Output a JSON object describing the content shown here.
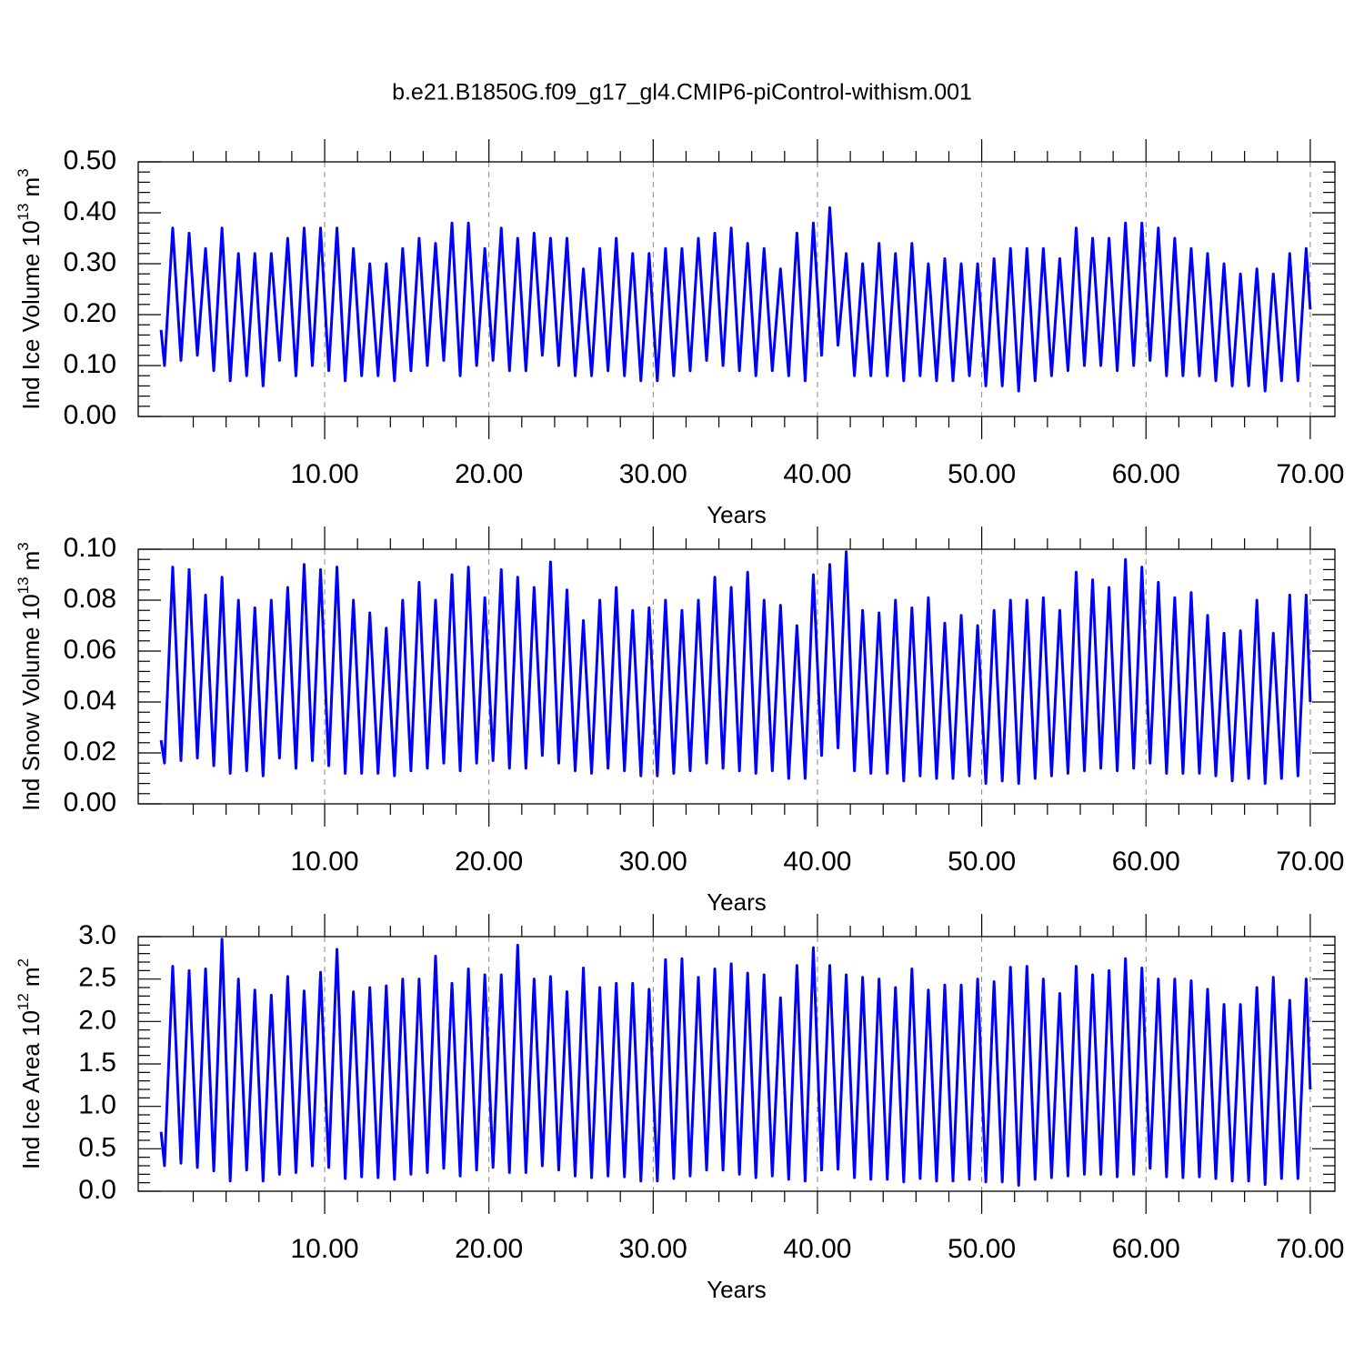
{
  "chart_data": [
    {
      "type": "line",
      "title": "b.e21.B1850G.f09_g17_gl4.CMIP6-piControl-withism.001",
      "xlabel": "Years",
      "ylabel": {
        "text": "Ind Ice Volume 10",
        "exponent": "13",
        "unit": "m",
        "unit_exponent": "3"
      },
      "color": "#0000ff",
      "grid": "x",
      "xlim": [
        -1.35,
        71.5
      ],
      "xticks": [
        {
          "value": 10,
          "label": "10.00"
        },
        {
          "value": 20,
          "label": "20.00"
        },
        {
          "value": 30,
          "label": "30.00"
        },
        {
          "value": 40,
          "label": "40.00"
        },
        {
          "value": 50,
          "label": "50.00"
        },
        {
          "value": 60,
          "label": "60.00"
        },
        {
          "value": 70,
          "label": "70.00"
        }
      ],
      "ylim": [
        0,
        0.5
      ],
      "yticks": [
        {
          "value": 0,
          "label": "0.00"
        },
        {
          "value": 0.1,
          "label": "0.10"
        },
        {
          "value": 0.2,
          "label": "0.20"
        },
        {
          "value": 0.3,
          "label": "0.30"
        },
        {
          "value": 0.4,
          "label": "0.40"
        },
        {
          "value": 0.5,
          "label": "0.50"
        }
      ],
      "x": [
        0.04,
        0.25,
        0.75,
        1.25,
        1.75,
        2.25,
        2.75,
        3.25,
        3.75,
        4.25,
        4.75,
        5.25,
        5.75,
        6.25,
        6.75,
        7.25,
        7.75,
        8.25,
        8.75,
        9.25,
        9.75,
        10.25,
        10.75,
        11.25,
        11.75,
        12.25,
        12.75,
        13.25,
        13.75,
        14.25,
        14.75,
        15.25,
        15.75,
        16.25,
        16.75,
        17.25,
        17.75,
        18.25,
        18.75,
        19.25,
        19.75,
        20.25,
        20.75,
        21.25,
        21.75,
        22.25,
        22.75,
        23.25,
        23.75,
        24.25,
        24.75,
        25.25,
        25.75,
        26.25,
        26.75,
        27.25,
        27.75,
        28.25,
        28.75,
        29.25,
        29.75,
        30.25,
        30.75,
        31.25,
        31.75,
        32.25,
        32.75,
        33.25,
        33.75,
        34.25,
        34.75,
        35.25,
        35.75,
        36.25,
        36.75,
        37.25,
        37.75,
        38.25,
        38.75,
        39.25,
        39.75,
        40.25,
        40.75,
        41.25,
        41.75,
        42.25,
        42.75,
        43.25,
        43.75,
        44.25,
        44.75,
        45.25,
        45.75,
        46.25,
        46.75,
        47.25,
        47.75,
        48.25,
        48.75,
        49.25,
        49.75,
        50.25,
        50.75,
        51.25,
        51.75,
        52.25,
        52.75,
        53.25,
        53.75,
        54.25,
        54.75,
        55.25,
        55.75,
        56.25,
        56.75,
        57.25,
        57.75,
        58.25,
        58.75,
        59.25,
        59.75,
        60.25,
        60.75,
        61.25,
        61.75,
        62.25,
        62.75,
        63.25,
        63.75,
        64.25,
        64.75,
        65.25,
        65.75,
        66.25,
        66.75,
        67.25,
        67.75,
        68.25,
        68.75,
        69.25,
        69.75,
        70
      ],
      "values": [
        0.17,
        0.1,
        0.37,
        0.11,
        0.36,
        0.12,
        0.33,
        0.09,
        0.37,
        0.07,
        0.32,
        0.08,
        0.32,
        0.06,
        0.32,
        0.11,
        0.35,
        0.08,
        0.37,
        0.1,
        0.37,
        0.09,
        0.37,
        0.07,
        0.33,
        0.08,
        0.3,
        0.08,
        0.3,
        0.07,
        0.33,
        0.09,
        0.35,
        0.1,
        0.34,
        0.11,
        0.38,
        0.08,
        0.38,
        0.1,
        0.33,
        0.11,
        0.37,
        0.09,
        0.35,
        0.09,
        0.36,
        0.12,
        0.35,
        0.1,
        0.35,
        0.08,
        0.29,
        0.08,
        0.33,
        0.09,
        0.35,
        0.08,
        0.32,
        0.07,
        0.32,
        0.07,
        0.33,
        0.08,
        0.33,
        0.09,
        0.35,
        0.11,
        0.36,
        0.1,
        0.37,
        0.09,
        0.34,
        0.08,
        0.33,
        0.09,
        0.29,
        0.08,
        0.36,
        0.07,
        0.38,
        0.12,
        0.41,
        0.14,
        0.32,
        0.08,
        0.3,
        0.08,
        0.34,
        0.08,
        0.32,
        0.07,
        0.34,
        0.08,
        0.3,
        0.07,
        0.31,
        0.07,
        0.3,
        0.08,
        0.3,
        0.06,
        0.31,
        0.06,
        0.33,
        0.05,
        0.33,
        0.07,
        0.33,
        0.08,
        0.31,
        0.09,
        0.37,
        0.1,
        0.35,
        0.1,
        0.35,
        0.09,
        0.38,
        0.1,
        0.38,
        0.11,
        0.37,
        0.08,
        0.35,
        0.08,
        0.33,
        0.08,
        0.32,
        0.07,
        0.3,
        0.06,
        0.28,
        0.06,
        0.29,
        0.05,
        0.28,
        0.07,
        0.32,
        0.07,
        0.33,
        0.21
      ]
    },
    {
      "type": "line",
      "xlabel": "Years",
      "ylabel": {
        "text": "Ind Snow Volume 10",
        "exponent": "13",
        "unit": "m",
        "unit_exponent": "3"
      },
      "color": "#0000ff",
      "grid": "x",
      "xlim": [
        -1.35,
        71.5
      ],
      "xticks": [
        {
          "value": 10,
          "label": "10.00"
        },
        {
          "value": 20,
          "label": "20.00"
        },
        {
          "value": 30,
          "label": "30.00"
        },
        {
          "value": 40,
          "label": "40.00"
        },
        {
          "value": 50,
          "label": "50.00"
        },
        {
          "value": 60,
          "label": "60.00"
        },
        {
          "value": 70,
          "label": "70.00"
        }
      ],
      "ylim": [
        0,
        0.1
      ],
      "yticks": [
        {
          "value": 0,
          "label": "0.00"
        },
        {
          "value": 0.02,
          "label": "0.02"
        },
        {
          "value": 0.04,
          "label": "0.04"
        },
        {
          "value": 0.06,
          "label": "0.06"
        },
        {
          "value": 0.08,
          "label": "0.08"
        },
        {
          "value": 0.1,
          "label": "0.10"
        }
      ],
      "x": [
        0.04,
        0.25,
        0.75,
        1.25,
        1.75,
        2.25,
        2.75,
        3.25,
        3.75,
        4.25,
        4.75,
        5.25,
        5.75,
        6.25,
        6.75,
        7.25,
        7.75,
        8.25,
        8.75,
        9.25,
        9.75,
        10.25,
        10.75,
        11.25,
        11.75,
        12.25,
        12.75,
        13.25,
        13.75,
        14.25,
        14.75,
        15.25,
        15.75,
        16.25,
        16.75,
        17.25,
        17.75,
        18.25,
        18.75,
        19.25,
        19.75,
        20.25,
        20.75,
        21.25,
        21.75,
        22.25,
        22.75,
        23.25,
        23.75,
        24.25,
        24.75,
        25.25,
        25.75,
        26.25,
        26.75,
        27.25,
        27.75,
        28.25,
        28.75,
        29.25,
        29.75,
        30.25,
        30.75,
        31.25,
        31.75,
        32.25,
        32.75,
        33.25,
        33.75,
        34.25,
        34.75,
        35.25,
        35.75,
        36.25,
        36.75,
        37.25,
        37.75,
        38.25,
        38.75,
        39.25,
        39.75,
        40.25,
        40.75,
        41.25,
        41.75,
        42.25,
        42.75,
        43.25,
        43.75,
        44.25,
        44.75,
        45.25,
        45.75,
        46.25,
        46.75,
        47.25,
        47.75,
        48.25,
        48.75,
        49.25,
        49.75,
        50.25,
        50.75,
        51.25,
        51.75,
        52.25,
        52.75,
        53.25,
        53.75,
        54.25,
        54.75,
        55.25,
        55.75,
        56.25,
        56.75,
        57.25,
        57.75,
        58.25,
        58.75,
        59.25,
        59.75,
        60.25,
        60.75,
        61.25,
        61.75,
        62.25,
        62.75,
        63.25,
        63.75,
        64.25,
        64.75,
        65.25,
        65.75,
        66.25,
        66.75,
        67.25,
        67.75,
        68.25,
        68.75,
        69.25,
        69.75,
        70
      ],
      "values": [
        0.025,
        0.016,
        0.093,
        0.017,
        0.092,
        0.018,
        0.082,
        0.015,
        0.089,
        0.012,
        0.08,
        0.013,
        0.077,
        0.011,
        0.08,
        0.018,
        0.085,
        0.014,
        0.094,
        0.017,
        0.092,
        0.015,
        0.093,
        0.012,
        0.08,
        0.012,
        0.075,
        0.012,
        0.069,
        0.011,
        0.08,
        0.013,
        0.087,
        0.014,
        0.08,
        0.016,
        0.09,
        0.013,
        0.093,
        0.016,
        0.081,
        0.017,
        0.092,
        0.014,
        0.089,
        0.014,
        0.085,
        0.019,
        0.095,
        0.016,
        0.084,
        0.013,
        0.072,
        0.012,
        0.08,
        0.014,
        0.085,
        0.013,
        0.076,
        0.011,
        0.077,
        0.011,
        0.08,
        0.012,
        0.076,
        0.013,
        0.08,
        0.016,
        0.089,
        0.014,
        0.085,
        0.013,
        0.091,
        0.012,
        0.08,
        0.013,
        0.078,
        0.01,
        0.07,
        0.01,
        0.09,
        0.019,
        0.094,
        0.022,
        0.099,
        0.013,
        0.076,
        0.012,
        0.075,
        0.012,
        0.08,
        0.009,
        0.077,
        0.011,
        0.081,
        0.01,
        0.071,
        0.01,
        0.074,
        0.011,
        0.07,
        0.008,
        0.076,
        0.009,
        0.08,
        0.008,
        0.08,
        0.01,
        0.081,
        0.011,
        0.076,
        0.012,
        0.091,
        0.013,
        0.088,
        0.014,
        0.085,
        0.013,
        0.096,
        0.014,
        0.093,
        0.016,
        0.087,
        0.012,
        0.081,
        0.012,
        0.083,
        0.012,
        0.074,
        0.011,
        0.067,
        0.009,
        0.068,
        0.01,
        0.08,
        0.008,
        0.067,
        0.01,
        0.082,
        0.011,
        0.082,
        0.04
      ]
    },
    {
      "type": "line",
      "xlabel": "Years",
      "ylabel": {
        "text": "Ind Ice Area 10",
        "exponent": "12",
        "unit": "m",
        "unit_exponent": "2"
      },
      "color": "#0000ff",
      "grid": "x",
      "xlim": [
        -1.35,
        71.5
      ],
      "xticks": [
        {
          "value": 10,
          "label": "10.00"
        },
        {
          "value": 20,
          "label": "20.00"
        },
        {
          "value": 30,
          "label": "30.00"
        },
        {
          "value": 40,
          "label": "40.00"
        },
        {
          "value": 50,
          "label": "50.00"
        },
        {
          "value": 60,
          "label": "60.00"
        },
        {
          "value": 70,
          "label": "70.00"
        }
      ],
      "ylim": [
        0,
        3
      ],
      "yticks": [
        {
          "value": 0,
          "label": "0.0"
        },
        0.5,
        {
          "value": 1,
          "label": "1.0"
        },
        1.5,
        {
          "value": 2,
          "label": "2.0"
        },
        2.5,
        {
          "value": 3,
          "label": "3.0"
        }
      ],
      "x": [
        0.04,
        0.25,
        0.75,
        1.25,
        1.75,
        2.25,
        2.75,
        3.25,
        3.75,
        4.25,
        4.75,
        5.25,
        5.75,
        6.25,
        6.75,
        7.25,
        7.75,
        8.25,
        8.75,
        9.25,
        9.75,
        10.25,
        10.75,
        11.25,
        11.75,
        12.25,
        12.75,
        13.25,
        13.75,
        14.25,
        14.75,
        15.25,
        15.75,
        16.25,
        16.75,
        17.25,
        17.75,
        18.25,
        18.75,
        19.25,
        19.75,
        20.25,
        20.75,
        21.25,
        21.75,
        22.25,
        22.75,
        23.25,
        23.75,
        24.25,
        24.75,
        25.25,
        25.75,
        26.25,
        26.75,
        27.25,
        27.75,
        28.25,
        28.75,
        29.25,
        29.75,
        30.25,
        30.75,
        31.25,
        31.75,
        32.25,
        32.75,
        33.25,
        33.75,
        34.25,
        34.75,
        35.25,
        35.75,
        36.25,
        36.75,
        37.25,
        37.75,
        38.25,
        38.75,
        39.25,
        39.75,
        40.25,
        40.75,
        41.25,
        41.75,
        42.25,
        42.75,
        43.25,
        43.75,
        44.25,
        44.75,
        45.25,
        45.75,
        46.25,
        46.75,
        47.25,
        47.75,
        48.25,
        48.75,
        49.25,
        49.75,
        50.25,
        50.75,
        51.25,
        51.75,
        52.25,
        52.75,
        53.25,
        53.75,
        54.25,
        54.75,
        55.25,
        55.75,
        56.25,
        56.75,
        57.25,
        57.75,
        58.25,
        58.75,
        59.25,
        59.75,
        60.25,
        60.75,
        61.25,
        61.75,
        62.25,
        62.75,
        63.25,
        63.75,
        64.25,
        64.75,
        65.25,
        65.75,
        66.25,
        66.75,
        67.25,
        67.75,
        68.25,
        68.75,
        69.25,
        69.75,
        70
      ],
      "values": [
        0.7,
        0.3,
        2.65,
        0.33,
        2.6,
        0.28,
        2.62,
        0.24,
        2.97,
        0.12,
        2.5,
        0.25,
        2.37,
        0.12,
        2.31,
        0.2,
        2.53,
        0.22,
        2.36,
        0.3,
        2.58,
        0.28,
        2.85,
        0.15,
        2.35,
        0.17,
        2.4,
        0.16,
        2.42,
        0.14,
        2.5,
        0.2,
        2.5,
        0.22,
        2.77,
        0.27,
        2.45,
        0.18,
        2.62,
        0.25,
        2.55,
        0.28,
        2.55,
        0.22,
        2.9,
        0.22,
        2.5,
        0.3,
        2.53,
        0.25,
        2.35,
        0.18,
        2.63,
        0.16,
        2.4,
        0.18,
        2.45,
        0.17,
        2.45,
        0.12,
        2.38,
        0.12,
        2.73,
        0.15,
        2.74,
        0.18,
        2.52,
        0.25,
        2.62,
        0.25,
        2.68,
        0.2,
        2.57,
        0.16,
        2.55,
        0.18,
        2.28,
        0.14,
        2.66,
        0.12,
        2.87,
        0.25,
        2.66,
        0.26,
        2.55,
        0.16,
        2.52,
        0.14,
        2.5,
        0.14,
        2.4,
        0.11,
        2.62,
        0.15,
        2.37,
        0.12,
        2.43,
        0.12,
        2.43,
        0.14,
        2.5,
        0.11,
        2.47,
        0.11,
        2.64,
        0.07,
        2.65,
        0.14,
        2.5,
        0.16,
        2.33,
        0.18,
        2.65,
        0.2,
        2.55,
        0.2,
        2.6,
        0.17,
        2.74,
        0.2,
        2.63,
        0.27,
        2.5,
        0.17,
        2.5,
        0.16,
        2.48,
        0.17,
        2.38,
        0.15,
        2.2,
        0.12,
        2.2,
        0.12,
        2.4,
        0.08,
        2.52,
        0.15,
        2.25,
        0.15,
        2.5,
        1.2
      ]
    }
  ]
}
